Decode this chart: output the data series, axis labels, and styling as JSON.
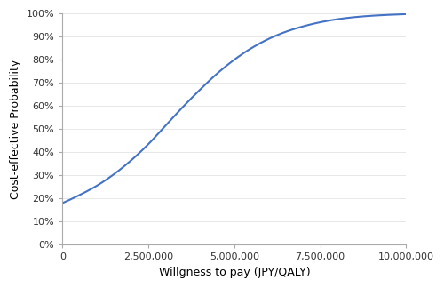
{
  "xlabel": "Willgness to pay (JPY/QALY)",
  "ylabel": "Cost-effective Probability",
  "line_color": "#4472C4",
  "line_width": 1.5,
  "xlim": [
    0,
    10000000
  ],
  "ylim": [
    0,
    1.0
  ],
  "xticks": [
    0,
    2500000,
    5000000,
    7500000,
    10000000
  ],
  "xtick_labels": [
    "0",
    "2,500,000",
    "5,000,000",
    "7,500,000",
    "10,000,000"
  ],
  "yticks": [
    0.0,
    0.1,
    0.2,
    0.3,
    0.4,
    0.5,
    0.6,
    0.7,
    0.8,
    0.9,
    1.0
  ],
  "ytick_labels": [
    "0%",
    "10%",
    "20%",
    "30%",
    "40%",
    "50%",
    "60%",
    "70%",
    "80%",
    "90%",
    "100%"
  ],
  "background_color": "#ffffff",
  "spine_color": "#aaaaaa",
  "tick_label_fontsize": 8,
  "axis_label_fontsize": 9,
  "control_x": [
    0,
    500000,
    1000000,
    1500000,
    2000000,
    2500000,
    3000000,
    3500000,
    4000000,
    4500000,
    5000000,
    5500000,
    6000000,
    6500000,
    7000000,
    7500000,
    8000000,
    8500000,
    9000000,
    9500000,
    10000000
  ],
  "control_y": [
    0.18,
    0.215,
    0.255,
    0.305,
    0.365,
    0.435,
    0.515,
    0.595,
    0.67,
    0.74,
    0.8,
    0.85,
    0.89,
    0.921,
    0.944,
    0.962,
    0.975,
    0.984,
    0.99,
    0.994,
    0.997
  ]
}
